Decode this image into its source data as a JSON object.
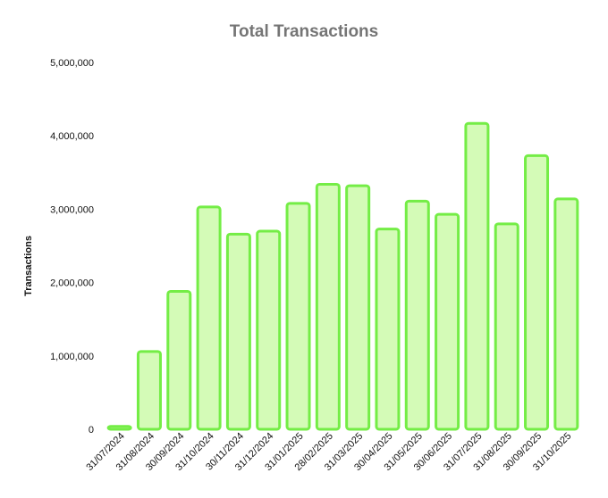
{
  "chart_data": {
    "type": "bar",
    "title": "Total Transactions",
    "xlabel": "",
    "ylabel": "Transactions",
    "ylim": [
      0,
      5000000
    ],
    "yticks": [
      "0",
      "1,000,000",
      "2,000,000",
      "3,000,000",
      "4,000,000",
      "5,000,000"
    ],
    "grid": false,
    "legend": "none",
    "categories": [
      "31/07/2024",
      "31/08/2024",
      "30/09/2024",
      "31/10/2024",
      "30/11/2024",
      "31/12/2024",
      "31/01/2025",
      "28/02/2025",
      "31/03/2025",
      "30/04/2025",
      "31/05/2025",
      "30/06/2025",
      "31/07/2025",
      "31/08/2025",
      "30/09/2025",
      "31/10/2025"
    ],
    "values": [
      40000,
      1060000,
      1880000,
      3030000,
      2660000,
      2700000,
      3080000,
      3340000,
      3320000,
      2730000,
      3110000,
      2930000,
      4170000,
      2800000,
      3730000,
      3140000
    ],
    "colors": {
      "bar_fill": "#d4fbb7",
      "bar_stroke": "#74ed46",
      "title": "#757575",
      "text": "#111111"
    }
  }
}
